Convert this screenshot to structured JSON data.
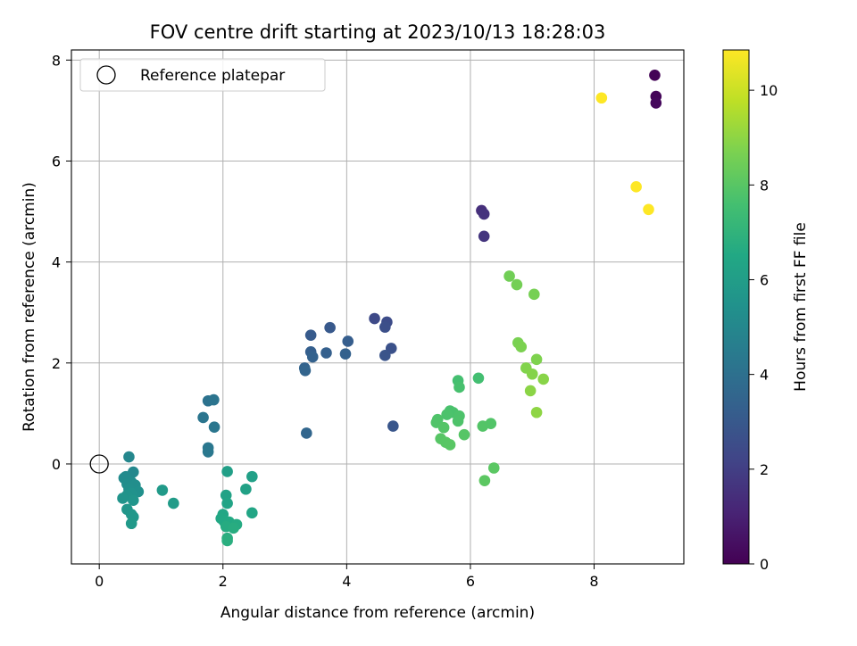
{
  "chart_data": {
    "type": "scatter",
    "title": "FOV centre drift starting at 2023/10/13 18:28:03",
    "xlabel": "Angular distance from reference (arcmin)",
    "ylabel": "Rotation from reference (arcmin)",
    "xlim": [
      -0.45,
      9.45
    ],
    "ylim": [
      -1.98,
      8.2
    ],
    "x_ticks": [
      {
        "value": 0,
        "label": "0"
      },
      {
        "value": 2,
        "label": "2"
      },
      {
        "value": 4,
        "label": "4"
      },
      {
        "value": 6,
        "label": "6"
      },
      {
        "value": 8,
        "label": "8"
      }
    ],
    "y_ticks": [
      {
        "value": 0,
        "label": "0"
      },
      {
        "value": 2,
        "label": "2"
      },
      {
        "value": 4,
        "label": "4"
      },
      {
        "value": 6,
        "label": "6"
      },
      {
        "value": 8,
        "label": "8"
      }
    ],
    "grid": true,
    "legend": {
      "position": "top-left",
      "entries": [
        {
          "label": "Reference platepar",
          "marker": "open-circle"
        }
      ]
    },
    "reference_point": {
      "x": 0,
      "y": 0
    },
    "colorbar": {
      "label": "Hours from first FF file",
      "colormap": "viridis",
      "range": [
        0,
        10.85
      ],
      "ticks": [
        {
          "value": 0,
          "label": "0"
        },
        {
          "value": 2,
          "label": "2"
        },
        {
          "value": 4,
          "label": "4"
        },
        {
          "value": 6,
          "label": "6"
        },
        {
          "value": 8,
          "label": "8"
        },
        {
          "value": 10,
          "label": "10"
        }
      ]
    },
    "points": [
      {
        "x": 8.98,
        "y": 7.7,
        "c": 0.05
      },
      {
        "x": 9.0,
        "y": 7.28,
        "c": 0.15
      },
      {
        "x": 9.0,
        "y": 7.15,
        "c": 0.25
      },
      {
        "x": 6.18,
        "y": 5.02,
        "c": 1.45
      },
      {
        "x": 6.22,
        "y": 4.95,
        "c": 1.55
      },
      {
        "x": 6.22,
        "y": 4.51,
        "c": 1.65
      },
      {
        "x": 4.45,
        "y": 2.88,
        "c": 2.4
      },
      {
        "x": 4.65,
        "y": 2.81,
        "c": 2.5
      },
      {
        "x": 4.62,
        "y": 2.71,
        "c": 2.6
      },
      {
        "x": 4.72,
        "y": 2.29,
        "c": 2.7
      },
      {
        "x": 4.62,
        "y": 2.15,
        "c": 2.8
      },
      {
        "x": 4.75,
        "y": 0.75,
        "c": 2.9
      },
      {
        "x": 3.73,
        "y": 2.7,
        "c": 3.0
      },
      {
        "x": 3.42,
        "y": 2.55,
        "c": 3.1
      },
      {
        "x": 4.02,
        "y": 2.43,
        "c": 3.2
      },
      {
        "x": 3.42,
        "y": 2.22,
        "c": 3.25
      },
      {
        "x": 3.67,
        "y": 2.2,
        "c": 3.3
      },
      {
        "x": 3.98,
        "y": 2.18,
        "c": 3.35
      },
      {
        "x": 3.45,
        "y": 2.12,
        "c": 3.4
      },
      {
        "x": 3.32,
        "y": 1.9,
        "c": 3.45
      },
      {
        "x": 3.33,
        "y": 1.85,
        "c": 3.5
      },
      {
        "x": 3.35,
        "y": 0.61,
        "c": 3.55
      },
      {
        "x": 1.76,
        "y": 1.25,
        "c": 4.1
      },
      {
        "x": 1.85,
        "y": 1.27,
        "c": 4.15
      },
      {
        "x": 1.68,
        "y": 0.92,
        "c": 4.2
      },
      {
        "x": 1.86,
        "y": 0.73,
        "c": 4.25
      },
      {
        "x": 1.76,
        "y": 0.32,
        "c": 4.3
      },
      {
        "x": 1.76,
        "y": 0.24,
        "c": 4.35
      },
      {
        "x": 0.48,
        "y": 0.14,
        "c": 5.0
      },
      {
        "x": 0.55,
        "y": -0.16,
        "c": 5.05
      },
      {
        "x": 0.43,
        "y": -0.25,
        "c": 5.1
      },
      {
        "x": 0.4,
        "y": -0.28,
        "c": 5.15
      },
      {
        "x": 0.52,
        "y": -0.36,
        "c": 5.2
      },
      {
        "x": 0.45,
        "y": -0.4,
        "c": 5.25
      },
      {
        "x": 0.58,
        "y": -0.42,
        "c": 5.3
      },
      {
        "x": 0.48,
        "y": -0.5,
        "c": 5.35
      },
      {
        "x": 0.63,
        "y": -0.55,
        "c": 5.4
      },
      {
        "x": 0.52,
        "y": -0.58,
        "c": 5.45
      },
      {
        "x": 0.45,
        "y": -0.62,
        "c": 5.5
      },
      {
        "x": 0.38,
        "y": -0.68,
        "c": 5.55
      },
      {
        "x": 0.55,
        "y": -0.72,
        "c": 5.6
      },
      {
        "x": 0.45,
        "y": -0.9,
        "c": 5.65
      },
      {
        "x": 0.52,
        "y": -1.0,
        "c": 5.7
      },
      {
        "x": 0.55,
        "y": -1.05,
        "c": 5.75
      },
      {
        "x": 0.52,
        "y": -1.18,
        "c": 5.8
      },
      {
        "x": 1.02,
        "y": -0.52,
        "c": 5.85
      },
      {
        "x": 1.2,
        "y": -0.78,
        "c": 5.9
      },
      {
        "x": 2.07,
        "y": -0.15,
        "c": 6.1
      },
      {
        "x": 2.47,
        "y": -0.25,
        "c": 6.15
      },
      {
        "x": 2.37,
        "y": -0.5,
        "c": 6.2
      },
      {
        "x": 2.05,
        "y": -0.62,
        "c": 6.25
      },
      {
        "x": 2.07,
        "y": -0.78,
        "c": 6.3
      },
      {
        "x": 2.47,
        "y": -0.97,
        "c": 6.35
      },
      {
        "x": 2.0,
        "y": -1.0,
        "c": 6.4
      },
      {
        "x": 1.97,
        "y": -1.08,
        "c": 6.45
      },
      {
        "x": 2.02,
        "y": -1.14,
        "c": 6.5
      },
      {
        "x": 2.1,
        "y": -1.15,
        "c": 6.55
      },
      {
        "x": 2.22,
        "y": -1.2,
        "c": 6.6
      },
      {
        "x": 2.05,
        "y": -1.24,
        "c": 6.65
      },
      {
        "x": 2.17,
        "y": -1.27,
        "c": 6.7
      },
      {
        "x": 2.07,
        "y": -1.47,
        "c": 6.75
      },
      {
        "x": 2.07,
        "y": -1.52,
        "c": 6.8
      },
      {
        "x": 6.13,
        "y": 1.7,
        "c": 7.55
      },
      {
        "x": 5.8,
        "y": 1.65,
        "c": 7.6
      },
      {
        "x": 5.82,
        "y": 1.52,
        "c": 7.65
      },
      {
        "x": 5.67,
        "y": 1.05,
        "c": 7.7
      },
      {
        "x": 5.72,
        "y": 1.02,
        "c": 7.72
      },
      {
        "x": 5.62,
        "y": 0.98,
        "c": 7.75
      },
      {
        "x": 5.82,
        "y": 0.95,
        "c": 7.78
      },
      {
        "x": 5.8,
        "y": 0.85,
        "c": 7.8
      },
      {
        "x": 5.47,
        "y": 0.88,
        "c": 7.82
      },
      {
        "x": 5.45,
        "y": 0.82,
        "c": 7.85
      },
      {
        "x": 6.33,
        "y": 0.8,
        "c": 7.88
      },
      {
        "x": 6.2,
        "y": 0.75,
        "c": 7.9
      },
      {
        "x": 5.57,
        "y": 0.72,
        "c": 7.92
      },
      {
        "x": 5.9,
        "y": 0.58,
        "c": 7.95
      },
      {
        "x": 5.52,
        "y": 0.5,
        "c": 7.97
      },
      {
        "x": 5.6,
        "y": 0.43,
        "c": 8.0
      },
      {
        "x": 5.67,
        "y": 0.38,
        "c": 8.02
      },
      {
        "x": 6.38,
        "y": -0.08,
        "c": 8.05
      },
      {
        "x": 6.23,
        "y": -0.33,
        "c": 8.08
      },
      {
        "x": 6.63,
        "y": 3.72,
        "c": 8.5
      },
      {
        "x": 6.75,
        "y": 3.55,
        "c": 8.55
      },
      {
        "x": 7.03,
        "y": 3.36,
        "c": 8.6
      },
      {
        "x": 6.77,
        "y": 2.4,
        "c": 8.65
      },
      {
        "x": 6.82,
        "y": 2.32,
        "c": 8.7
      },
      {
        "x": 7.07,
        "y": 2.07,
        "c": 8.75
      },
      {
        "x": 6.9,
        "y": 1.9,
        "c": 8.8
      },
      {
        "x": 7.0,
        "y": 1.78,
        "c": 8.85
      },
      {
        "x": 7.18,
        "y": 1.68,
        "c": 8.9
      },
      {
        "x": 6.97,
        "y": 1.45,
        "c": 8.95
      },
      {
        "x": 7.07,
        "y": 1.02,
        "c": 9.0
      },
      {
        "x": 8.12,
        "y": 7.25,
        "c": 10.85
      },
      {
        "x": 8.68,
        "y": 5.49,
        "c": 10.85
      },
      {
        "x": 8.88,
        "y": 5.04,
        "c": 10.85
      }
    ]
  }
}
